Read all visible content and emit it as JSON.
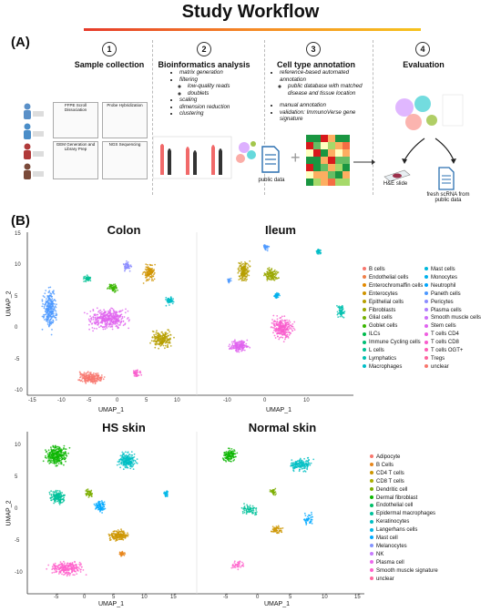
{
  "title": "Study Workflow",
  "panel_a": "(A)",
  "panel_b": "(B)",
  "steps": [
    {
      "num": "1",
      "title": "Sample collection"
    },
    {
      "num": "2",
      "title": "Bioinformatics analysis"
    },
    {
      "num": "3",
      "title": "Cell type annotation"
    },
    {
      "num": "4",
      "title": "Evaluation"
    }
  ],
  "bioinfo": {
    "matrix": "matrix generation",
    "filtering": "filtering",
    "lowq": "low-quality reads",
    "doublets": "doublets",
    "scaling": "scaling",
    "dimred": "dimension reduction",
    "clustering": "clustering"
  },
  "annotation": {
    "ref": "reference-based automated annotation",
    "pubdb": "public database with matched disease and tissue location",
    "manual": "manual annotation",
    "validation": "validation: ImmunoVerse gene signature"
  },
  "sample_boxes": {
    "b1": "FFPE Scroll Dissociation",
    "b2": "Probe Hybridization",
    "b3": "GEM Generation and Library Prep",
    "b4": "NGS Sequencing"
  },
  "public_data": "public data",
  "he_slide": "H&E slide",
  "fresh": "fresh scRNA from public data",
  "plus": "+",
  "umaps": {
    "colon": "Colon",
    "ileum": "Ileum",
    "hs": "HS skin",
    "normal": "Normal skin"
  },
  "axes": {
    "umap1": "UMAP_1",
    "umap2": "UMAP_2",
    "top_yticks": [
      "15",
      "10",
      "5",
      "0",
      "-5",
      "-10"
    ],
    "colon_xticks": [
      "-15",
      "-10",
      "-5",
      "0",
      "5",
      "10"
    ],
    "ileum_xticks": [
      "-10",
      "0",
      "10"
    ],
    "bottom_yticks": [
      "10",
      "5",
      "0",
      "-5",
      "-10"
    ],
    "hs_xticks": [
      "-5",
      "0",
      "5",
      "10",
      "15"
    ],
    "normal_xticks": [
      "-5",
      "0",
      "5",
      "10",
      "15"
    ]
  },
  "legend_gut_col1": [
    "B cells",
    "Endothelial cells",
    "Enterochromaffin cells",
    "Enterocytes",
    "Epithelial cells",
    "Fibroblasts",
    "Glial cells",
    "Goblet cells",
    "ILCs",
    "Immune Cycling cells",
    "L cells",
    "Lymphatics",
    "Macrophages"
  ],
  "legend_gut_col2": [
    "Mast cells",
    "Monocytes",
    "Neutrophil",
    "Paneth cells",
    "Pericytes",
    "Plasma cells",
    "Smooth muscle cells",
    "Stem cells",
    "T cells CD4",
    "T cells CD8",
    "T cells OGT+",
    "Tregs",
    "unclear"
  ],
  "legend_skin": [
    "Adipocyte",
    "B Cells",
    "CD4 T cells",
    "CD8 T cells",
    "Dendritic cell",
    "Dermal fibroblast",
    "Endothelial cell",
    "Epidermal macrophages",
    "Keratinocytes",
    "Langerhans cells",
    "Mast cell",
    "Melanocytes",
    "NK",
    "Plasma cell",
    "Smooth muscle signature",
    "unclear"
  ],
  "colors": {
    "gut_col1": [
      "#f8766d",
      "#ef7f48",
      "#e38900",
      "#cf9400",
      "#b79f00",
      "#9aa800",
      "#74b000",
      "#39b600",
      "#00bb4e",
      "#00be76",
      "#00c094",
      "#00c0af",
      "#00bdc7"
    ],
    "gut_col2": [
      "#00b8db",
      "#00b0ec",
      "#00a5fb",
      "#4c98ff",
      "#8b8cff",
      "#b07cff",
      "#cd6ff9",
      "#e063ef",
      "#ef5ee0",
      "#f95ccd",
      "#fe5fb6",
      "#fe649d",
      "#f8766d"
    ],
    "skin": [
      "#f8766d",
      "#e7861b",
      "#cd9600",
      "#abae00",
      "#7cae00",
      "#0cb702",
      "#00be67",
      "#00c19a",
      "#00bfc4",
      "#00b8e7",
      "#00a9ff",
      "#8494ff",
      "#c77cff",
      "#ed68ed",
      "#ff61cc",
      "#ff68a1"
    ]
  }
}
